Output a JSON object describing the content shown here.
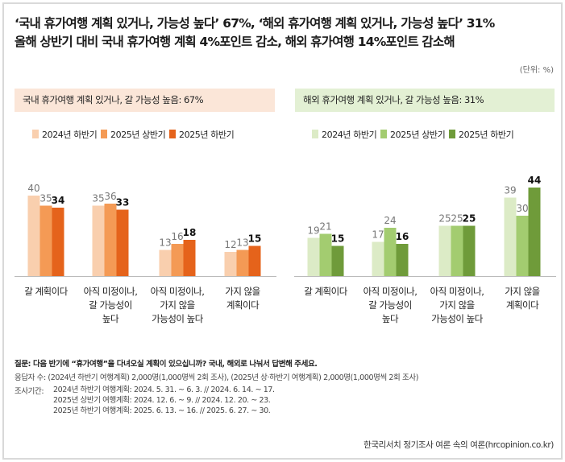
{
  "title": {
    "line1": "‘국내 휴가여행 계획 있거나, 가능성 높다’ 67%, ‘해외 휴가여행 계획 있거나, 가능성 높다’ 31%",
    "line2": "올해 상반기 대비 국내 휴가여행 계획 4%포인트 감소, 해외 휴가여행 14%포인트 감소해"
  },
  "unit": "(단위: %)",
  "chart_data": [
    {
      "type": "bar",
      "title": "국내 휴가여행 계획 있거나, 갈 가능성 높음: 67%",
      "categories": [
        "갈 계획이다",
        "아직 미정이나,\n갈 가능성이\n높다",
        "아직 미정이나,\n가지 않을\n가능성이 높다",
        "가지 않을\n계획이다"
      ],
      "series": [
        {
          "name": "2024년 하반기",
          "color": "#f9cfae",
          "values": [
            40,
            35,
            13,
            12
          ]
        },
        {
          "name": "2025년 상반기",
          "color": "#f49a55",
          "values": [
            35,
            36,
            16,
            13
          ]
        },
        {
          "name": "2025년 하반기",
          "color": "#e5631b",
          "values": [
            34,
            33,
            18,
            15
          ]
        }
      ],
      "ylim": [
        0,
        50
      ],
      "legend": "top-center"
    },
    {
      "type": "bar",
      "title": "해외 휴가여행 계획 있거나, 갈 가능성 높음: 31%",
      "categories": [
        "갈 계획이다",
        "아직 미정이나,\n갈 가능성이\n높다",
        "아직 미정이나,\n가지 않을\n가능성이 높다",
        "가지 않을\n계획이다"
      ],
      "series": [
        {
          "name": "2024년 하반기",
          "color": "#dcebc6",
          "values": [
            19,
            17,
            25,
            39
          ]
        },
        {
          "name": "2025년 상반기",
          "color": "#a3cc70",
          "values": [
            21,
            24,
            25,
            30
          ]
        },
        {
          "name": "2025년 하반기",
          "color": "#6f9b3a",
          "values": [
            15,
            16,
            25,
            44
          ]
        }
      ],
      "ylim": [
        0,
        50
      ],
      "legend": "top-center"
    }
  ],
  "notes": {
    "question": "질문: 다음 반기에 “휴가여행”을 다녀오실 계획이 있으십니까? 국내, 해외로 나눠서 답변해 주세요.",
    "respondents": "응답자 수: (2024년 하반기 여행계획) 2,000명(1,000명씩 2회 조사), (2025년 상·하반기 여행계획) 2,000명(1,000명씩 2회 조사)",
    "period_label": "조사기간:",
    "periods": [
      "2024년 하반기 여행계획: 2024. 5. 31. ~ 6. 3. // 2024. 6. 14. ~ 17.",
      "2025년 상반기 여행계획: 2024. 12. 6. ~  9. // 2024. 12. 20. ~ 23.",
      "2025년 하반기 여행계획: 2025. 6. 13. ~ 16. // 2025. 6. 27. ~ 30."
    ]
  },
  "source": "한국리서치 정기조사 여론 속의 여론(hrcopinion.co.kr)"
}
